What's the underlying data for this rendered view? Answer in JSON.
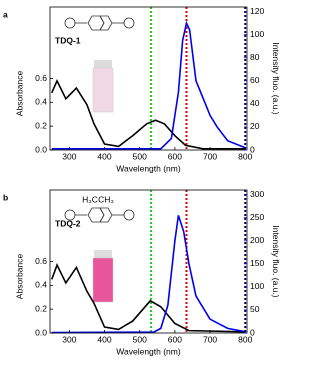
{
  "chart_data": [
    {
      "type": "line",
      "label": "a",
      "compound": "TDQ-1",
      "x_label": "Wavelength (nm)",
      "y_label": "Absorbance",
      "y2_label": "Intensity fluo. (a.u.)",
      "xlim": [
        245,
        805
      ],
      "xticks": [
        300,
        400,
        500,
        600,
        700,
        800
      ],
      "ylim": [
        0,
        1.2
      ],
      "yticks": [
        {
          "value": 0,
          "label": "0.0"
        },
        {
          "value": 0.2,
          "label": "0.2"
        },
        {
          "value": 0.4,
          "label": "0.4"
        },
        {
          "value": 0.6,
          "label": "0.6"
        }
      ],
      "y2lim": [
        0,
        124
      ],
      "y2ticks": [
        0,
        20,
        40,
        60,
        80,
        100,
        120
      ],
      "series": [
        {
          "color": "#000000",
          "x": [
            250,
            265,
            290,
            320,
            350,
            370,
            400,
            440,
            480,
            520,
            545,
            570,
            600,
            630,
            680,
            800
          ],
          "values": [
            0.48,
            0.58,
            0.43,
            0.52,
            0.38,
            0.22,
            0.05,
            0.03,
            0.12,
            0.22,
            0.25,
            0.22,
            0.12,
            0.04,
            0.01,
            0.01
          ]
        },
        {
          "color": "#0000ee",
          "axis": "y2",
          "x": [
            250,
            560,
            590,
            610,
            622,
            633,
            642,
            660,
            680,
            700,
            720,
            750,
            800
          ],
          "values": [
            1,
            1,
            10,
            50,
            95,
            110,
            104,
            60,
            45,
            30,
            20,
            8,
            2
          ]
        }
      ],
      "markers": [
        {
          "x": 532,
          "color": "#22cc22"
        },
        {
          "x": 633,
          "color": "#dd0000"
        },
        {
          "x": 800,
          "color": "#000066"
        }
      ]
    },
    {
      "type": "line",
      "label": "b",
      "compound": "TDQ-2",
      "structure_labels": [
        "H₃C",
        "CH₃"
      ],
      "x_label": "Wavelength (nm)",
      "y_label": "Absorbance",
      "y2_label": "Intensity fluo. (a.u.)",
      "xlim": [
        245,
        805
      ],
      "xticks": [
        300,
        400,
        500,
        600,
        700,
        800
      ],
      "ylim": [
        0,
        1.2
      ],
      "yticks": [
        {
          "value": 0,
          "label": "0.0"
        },
        {
          "value": 0.2,
          "label": "0.2"
        },
        {
          "value": 0.4,
          "label": "0.4"
        },
        {
          "value": 0.6,
          "label": "0.6"
        }
      ],
      "y2lim": [
        0,
        310
      ],
      "y2ticks": [
        0,
        50,
        100,
        150,
        200,
        250,
        300
      ],
      "series": [
        {
          "color": "#000000",
          "x": [
            250,
            265,
            290,
            320,
            350,
            370,
            400,
            440,
            480,
            530,
            560,
            600,
            640,
            800
          ],
          "values": [
            0.45,
            0.57,
            0.42,
            0.55,
            0.35,
            0.25,
            0.05,
            0.03,
            0.1,
            0.27,
            0.22,
            0.08,
            0.02,
            0.01
          ]
        },
        {
          "color": "#0000ee",
          "axis": "y2",
          "x": [
            250,
            540,
            560,
            580,
            600,
            610,
            625,
            640,
            660,
            700,
            750,
            800
          ],
          "values": [
            1,
            2,
            10,
            60,
            200,
            255,
            220,
            150,
            80,
            30,
            10,
            3
          ]
        }
      ],
      "markers": [
        {
          "x": 532,
          "color": "#22cc22"
        },
        {
          "x": 633,
          "color": "#dd0000"
        },
        {
          "x": 800,
          "color": "#000066"
        }
      ]
    }
  ]
}
